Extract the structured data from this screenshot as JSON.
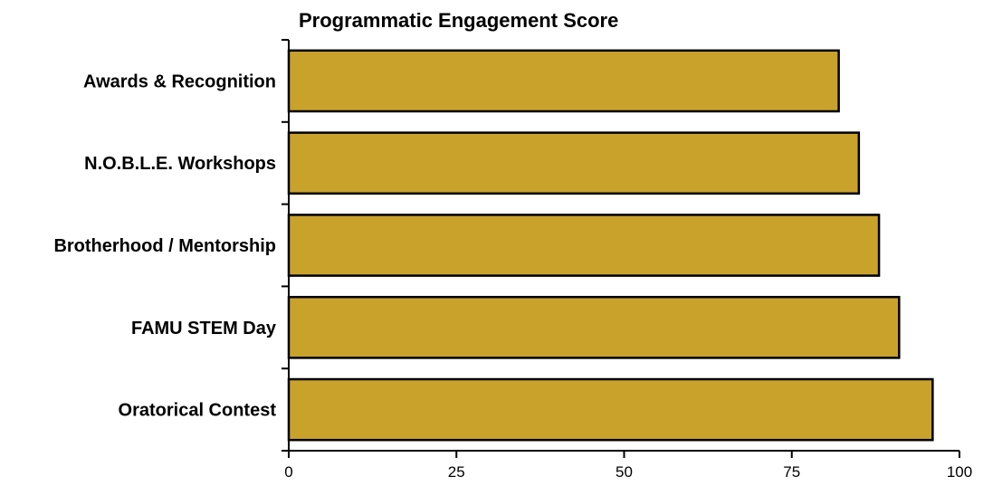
{
  "chart_data": {
    "type": "bar",
    "orientation": "horizontal",
    "title": "Programmatic Engagement Score",
    "xlabel": "",
    "ylabel": "",
    "categories": [
      "Awards & Recognition",
      "N.O.B.L.E. Workshops",
      "Brotherhood / Mentorship",
      "FAMU STEM Day",
      "Oratorical Contest"
    ],
    "values": [
      82,
      85,
      88,
      91,
      96
    ],
    "xlim": [
      0,
      100
    ],
    "xticks": [
      0,
      25,
      50,
      75,
      100
    ],
    "grid": false,
    "legend": "none",
    "bar_color": "#C9A22C",
    "edge_color": "#000000"
  }
}
